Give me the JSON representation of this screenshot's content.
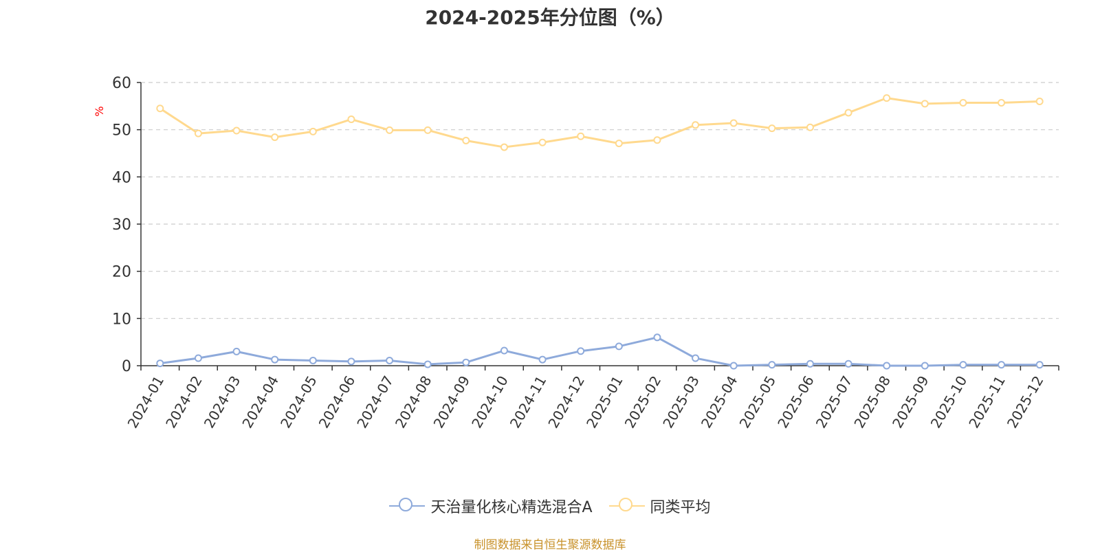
{
  "chart_data": {
    "type": "line",
    "title": "2024-2025年分位图（%）",
    "ylabel": "%",
    "xlabel": "",
    "ylim": [
      0,
      60
    ],
    "yticks": [
      0,
      10,
      20,
      30,
      40,
      50,
      60
    ],
    "grid": true,
    "legend_position": "bottom-center",
    "categories": [
      "2024-01",
      "2024-02",
      "2024-03",
      "2024-04",
      "2024-05",
      "2024-06",
      "2024-07",
      "2024-08",
      "2024-09",
      "2024-10",
      "2024-11",
      "2024-12",
      "2025-01",
      "2025-02",
      "2025-03",
      "2025-04",
      "2025-05",
      "2025-06",
      "2025-07",
      "2025-08",
      "2025-09",
      "2025-10",
      "2025-11",
      "2025-12"
    ],
    "series": [
      {
        "name": "天治量化核心精选混合A",
        "color": "#8eaadb",
        "values": [
          0.5,
          1.6,
          3.0,
          1.3,
          1.1,
          0.9,
          1.1,
          0.3,
          0.7,
          3.2,
          1.3,
          3.1,
          4.1,
          6.0,
          1.6,
          0.0,
          0.2,
          0.4,
          0.4,
          0.0,
          0.0,
          0.2,
          0.2,
          0.2
        ]
      },
      {
        "name": "同类平均",
        "color": "#ffd98e",
        "values": [
          54.5,
          49.2,
          49.8,
          48.4,
          49.6,
          52.2,
          49.9,
          49.9,
          47.7,
          46.3,
          47.3,
          48.6,
          47.1,
          47.8,
          51.0,
          51.4,
          50.3,
          50.5,
          53.6,
          56.7,
          55.5,
          55.7,
          55.7,
          56.0
        ]
      }
    ]
  },
  "source_text": "制图数据来自恒生聚源数据库"
}
